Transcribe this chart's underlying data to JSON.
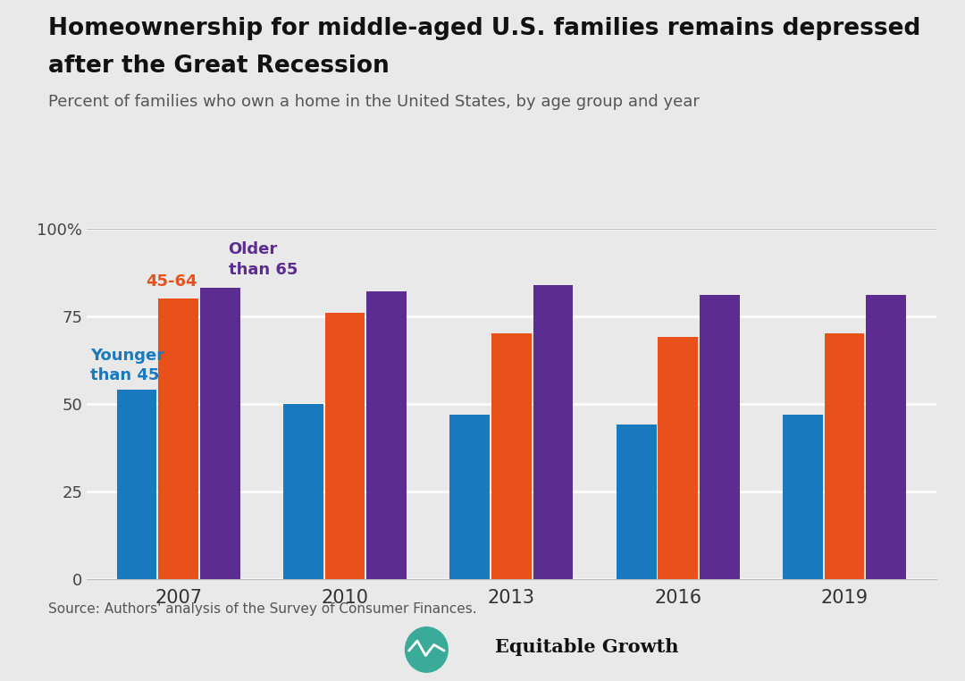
{
  "title_line1": "Homeownership for middle-aged U.S. families remains depressed",
  "title_line2": "after the Great Recession",
  "subtitle": "Percent of families who own a home in the United States, by age group and year",
  "years": [
    2007,
    2010,
    2013,
    2016,
    2019
  ],
  "younger_than_45": [
    54,
    50,
    47,
    44,
    47
  ],
  "age_45_64": [
    80,
    76,
    70,
    69,
    70
  ],
  "older_than_65": [
    83,
    82,
    84,
    81,
    81
  ],
  "color_younger": "#1a7abf",
  "color_45_64": "#e8511a",
  "color_65plus": "#5c2d91",
  "background_color": "#e9e9e9",
  "source_text": "Source: Authors' analysis of the Survey of Consumer Finances.",
  "yticks": [
    0,
    25,
    50,
    75,
    100
  ],
  "ylim": [
    0,
    105
  ],
  "label_younger": "Younger\nthan 45",
  "label_45_64": "45-64",
  "label_65plus": "Older\nthan 65",
  "bar_width": 0.24,
  "bar_gap": 0.01
}
